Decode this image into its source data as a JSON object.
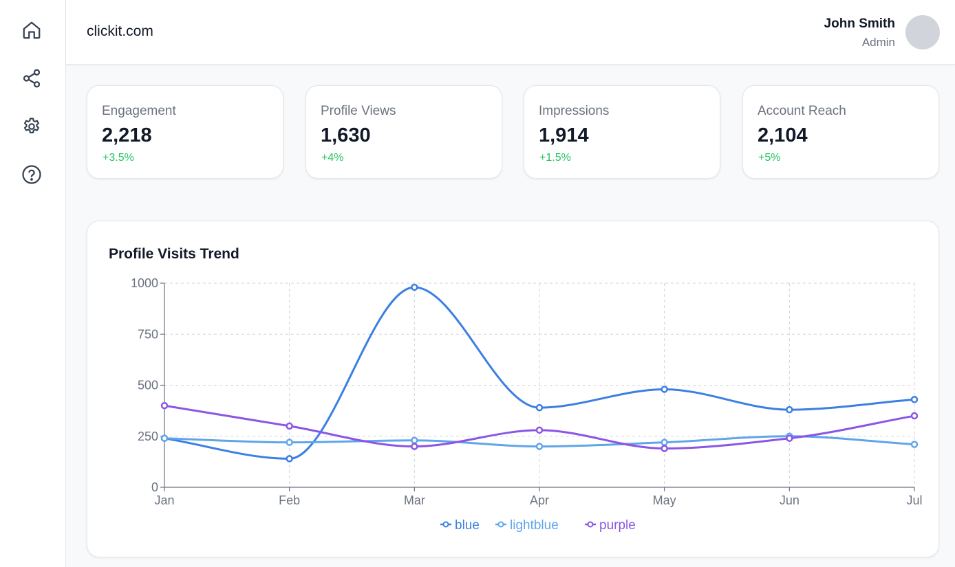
{
  "sidebar": {
    "items": [
      {
        "icon": "home-icon"
      },
      {
        "icon": "share-icon"
      },
      {
        "icon": "gear-icon"
      },
      {
        "icon": "help-icon"
      }
    ]
  },
  "header": {
    "brand": "clickit.com",
    "user": {
      "name": "John Smith",
      "role": "Admin"
    }
  },
  "stats": [
    {
      "label": "Engagement",
      "value": "2,218",
      "change": "+3.5%"
    },
    {
      "label": "Profile Views",
      "value": "1,630",
      "change": "+4%"
    },
    {
      "label": "Impressions",
      "value": "1,914",
      "change": "+1.5%"
    },
    {
      "label": "Account Reach",
      "value": "2,104",
      "change": "+5%"
    }
  ],
  "colors": {
    "positive": "#22c55e",
    "icon": "#374151"
  },
  "chart_data": {
    "type": "line",
    "title": "Profile Visits Trend",
    "categories": [
      "Jan",
      "Feb",
      "Mar",
      "Apr",
      "May",
      "Jun",
      "Jul"
    ],
    "ylim": [
      0,
      1000
    ],
    "yticks": [
      0,
      250,
      500,
      750,
      1000
    ],
    "grid": true,
    "legend": "bottom",
    "series": [
      {
        "name": "blue",
        "color": "#3b7fe3",
        "values": [
          240,
          140,
          980,
          390,
          480,
          380,
          430
        ]
      },
      {
        "name": "lightblue",
        "color": "#60a5ea",
        "values": [
          240,
          220,
          230,
          200,
          220,
          250,
          210
        ]
      },
      {
        "name": "purple",
        "color": "#8b55e6",
        "values": [
          400,
          300,
          200,
          280,
          190,
          240,
          350
        ]
      }
    ]
  }
}
